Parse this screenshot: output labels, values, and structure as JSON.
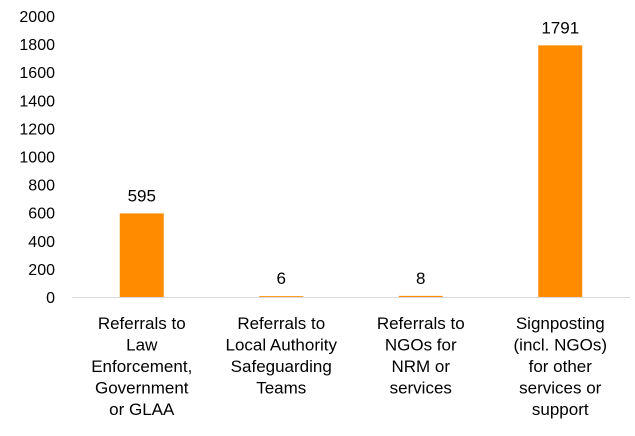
{
  "chart_data": {
    "type": "bar",
    "categories": [
      [
        "Referrals to",
        "Law",
        "Enforcement,",
        "Government",
        "or GLAA"
      ],
      [
        "Referrals to",
        "Local Authority",
        "Safeguarding",
        "Teams"
      ],
      [
        "Referrals to",
        "NGOs for",
        "NRM or",
        "services"
      ],
      [
        "Signposting",
        "(incl. NGOs)",
        "for other",
        "services or",
        "support"
      ]
    ],
    "values": [
      595,
      6,
      8,
      1791
    ],
    "data_labels": [
      "595",
      "6",
      "8",
      "1791"
    ],
    "ylim": [
      0,
      2000
    ],
    "yticks": [
      0,
      200,
      400,
      600,
      800,
      1000,
      1200,
      1400,
      1600,
      1800,
      2000
    ],
    "bar_color": "#FF8C00",
    "gridlines": false,
    "legend": "none"
  }
}
